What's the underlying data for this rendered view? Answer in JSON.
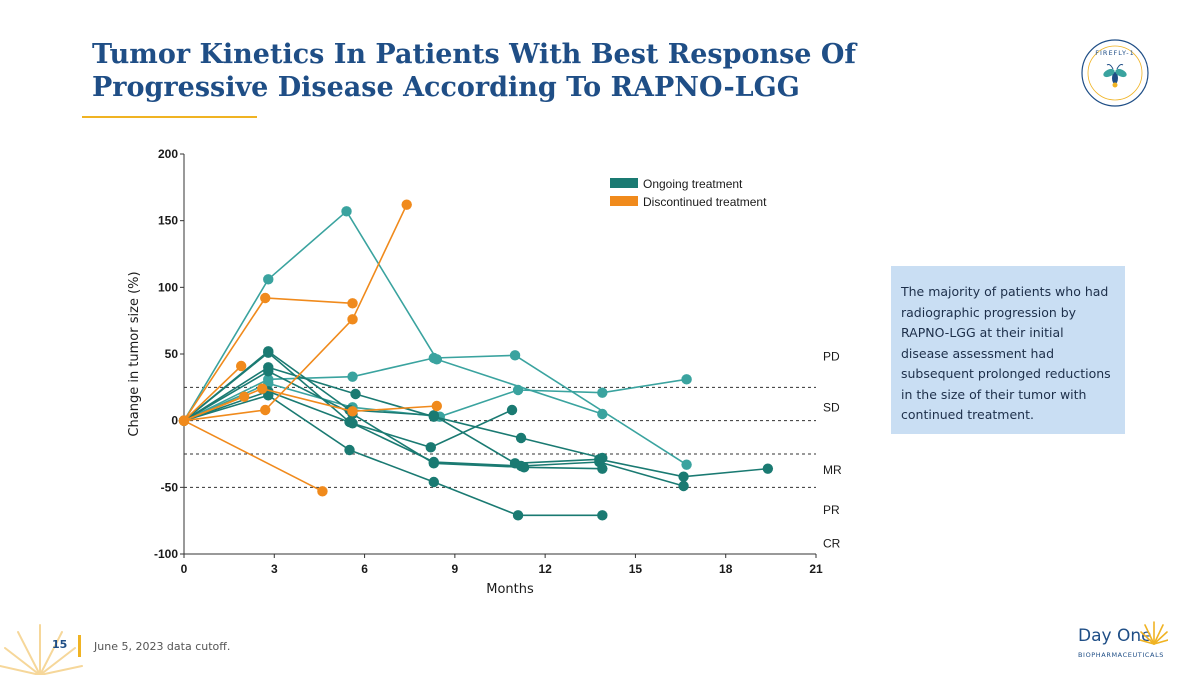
{
  "slide": {
    "title": "Tumor Kinetics In Patients With Best Response Of Progressive Disease According To RAPNO-LGG",
    "badge_text": "FIREFLY-1",
    "callout": "The majority of patients who had radiographic progression by RAPNO-LGG at their initial disease assessment had subsequent prolonged reductions in the size of their tumor with continued treatment.",
    "page_number": "15",
    "footnote": "June 5, 2023 data cutoff.",
    "logo_name": "Day One",
    "logo_sub": "BIOPHARMACEUTICALS"
  },
  "colors": {
    "title": "#1f4e86",
    "accent": "#f0b323",
    "ongoing_dark": "#1a7a72",
    "ongoing_light": "#3aa39f",
    "discontinued": "#f08a1c",
    "callout_bg": "#c9def3"
  },
  "chart_data": {
    "type": "line",
    "title": "",
    "xlabel": "Months",
    "ylabel": "Change in tumor size (%)",
    "xlim": [
      0,
      21
    ],
    "ylim": [
      -100,
      200
    ],
    "xticks": [
      0,
      3,
      6,
      9,
      12,
      15,
      18,
      21
    ],
    "yticks": [
      200,
      150,
      100,
      50,
      0,
      -50,
      -100
    ],
    "legend": {
      "position": "top-right",
      "entries": [
        {
          "label": "Ongoing treatment",
          "color": "#1a7a72"
        },
        {
          "label": "Discontinued treatment",
          "color": "#f08a1c"
        }
      ]
    },
    "reference_lines": [
      25,
      0,
      -25,
      -50
    ],
    "zones": [
      {
        "label": "PD",
        "y": 48
      },
      {
        "label": "SD",
        "y": 10
      },
      {
        "label": "MR",
        "y": -37
      },
      {
        "label": "PR",
        "y": -67
      },
      {
        "label": "CR",
        "y": -92
      }
    ],
    "series": [
      {
        "group": "ongoing",
        "shade": "light",
        "x": [
          0,
          2.8,
          5.4,
          8.4,
          13.9
        ],
        "y": [
          0,
          106,
          157,
          46,
          5
        ]
      },
      {
        "group": "ongoing",
        "shade": "light",
        "x": [
          0,
          2.8,
          5.6,
          8.3,
          11.0,
          16.7
        ],
        "y": [
          0,
          31,
          33,
          47,
          49,
          -33
        ]
      },
      {
        "group": "ongoing",
        "shade": "light",
        "x": [
          0,
          2.8,
          5.6,
          8.5,
          11.1,
          13.9,
          16.7
        ],
        "y": [
          0,
          28,
          10,
          3,
          23,
          21,
          31
        ]
      },
      {
        "group": "ongoing",
        "shade": "dark",
        "x": [
          0,
          2.8,
          5.5,
          8.3,
          11.0,
          13.8,
          16.6,
          19.4
        ],
        "y": [
          0,
          52,
          8,
          4,
          -32,
          -29,
          -42,
          -36
        ]
      },
      {
        "group": "ongoing",
        "shade": "dark",
        "x": [
          0,
          2.8,
          5.7,
          8.3,
          11.2,
          13.9
        ],
        "y": [
          0,
          40,
          20,
          3,
          -13,
          -28
        ]
      },
      {
        "group": "ongoing",
        "shade": "dark",
        "x": [
          0,
          2.8,
          5.6,
          8.3,
          11.3,
          13.9
        ],
        "y": [
          0,
          37,
          5,
          -32,
          -35,
          -36
        ]
      },
      {
        "group": "ongoing",
        "shade": "dark",
        "x": [
          0,
          2.8,
          5.6,
          8.2,
          10.9
        ],
        "y": [
          0,
          22,
          -2,
          -20,
          8
        ]
      },
      {
        "group": "ongoing",
        "shade": "dark",
        "x": [
          0,
          2.8,
          5.5,
          8.3,
          11.1,
          13.9
        ],
        "y": [
          0,
          19,
          -22,
          -46,
          -71,
          -71
        ]
      },
      {
        "group": "ongoing",
        "shade": "dark",
        "x": [
          0,
          2.8,
          5.5,
          8.3,
          11.2,
          13.8,
          16.6
        ],
        "y": [
          0,
          51,
          -1,
          -31,
          -34,
          -31,
          -49
        ]
      },
      {
        "group": "discontinued",
        "x": [
          0,
          2.7,
          5.6
        ],
        "y": [
          0,
          92,
          88
        ]
      },
      {
        "group": "discontinued",
        "x": [
          0,
          2.7,
          5.6,
          7.4
        ],
        "y": [
          0,
          8,
          76,
          162
        ]
      },
      {
        "group": "discontinued",
        "x": [
          0,
          1.9
        ],
        "y": [
          0,
          41
        ]
      },
      {
        "group": "discontinued",
        "x": [
          0,
          2.6,
          5.6,
          8.4
        ],
        "y": [
          0,
          24,
          7,
          11
        ]
      },
      {
        "group": "discontinued",
        "x": [
          0,
          2.0
        ],
        "y": [
          0,
          18
        ]
      },
      {
        "group": "discontinued",
        "x": [
          0,
          4.6
        ],
        "y": [
          0,
          -53
        ]
      }
    ]
  }
}
